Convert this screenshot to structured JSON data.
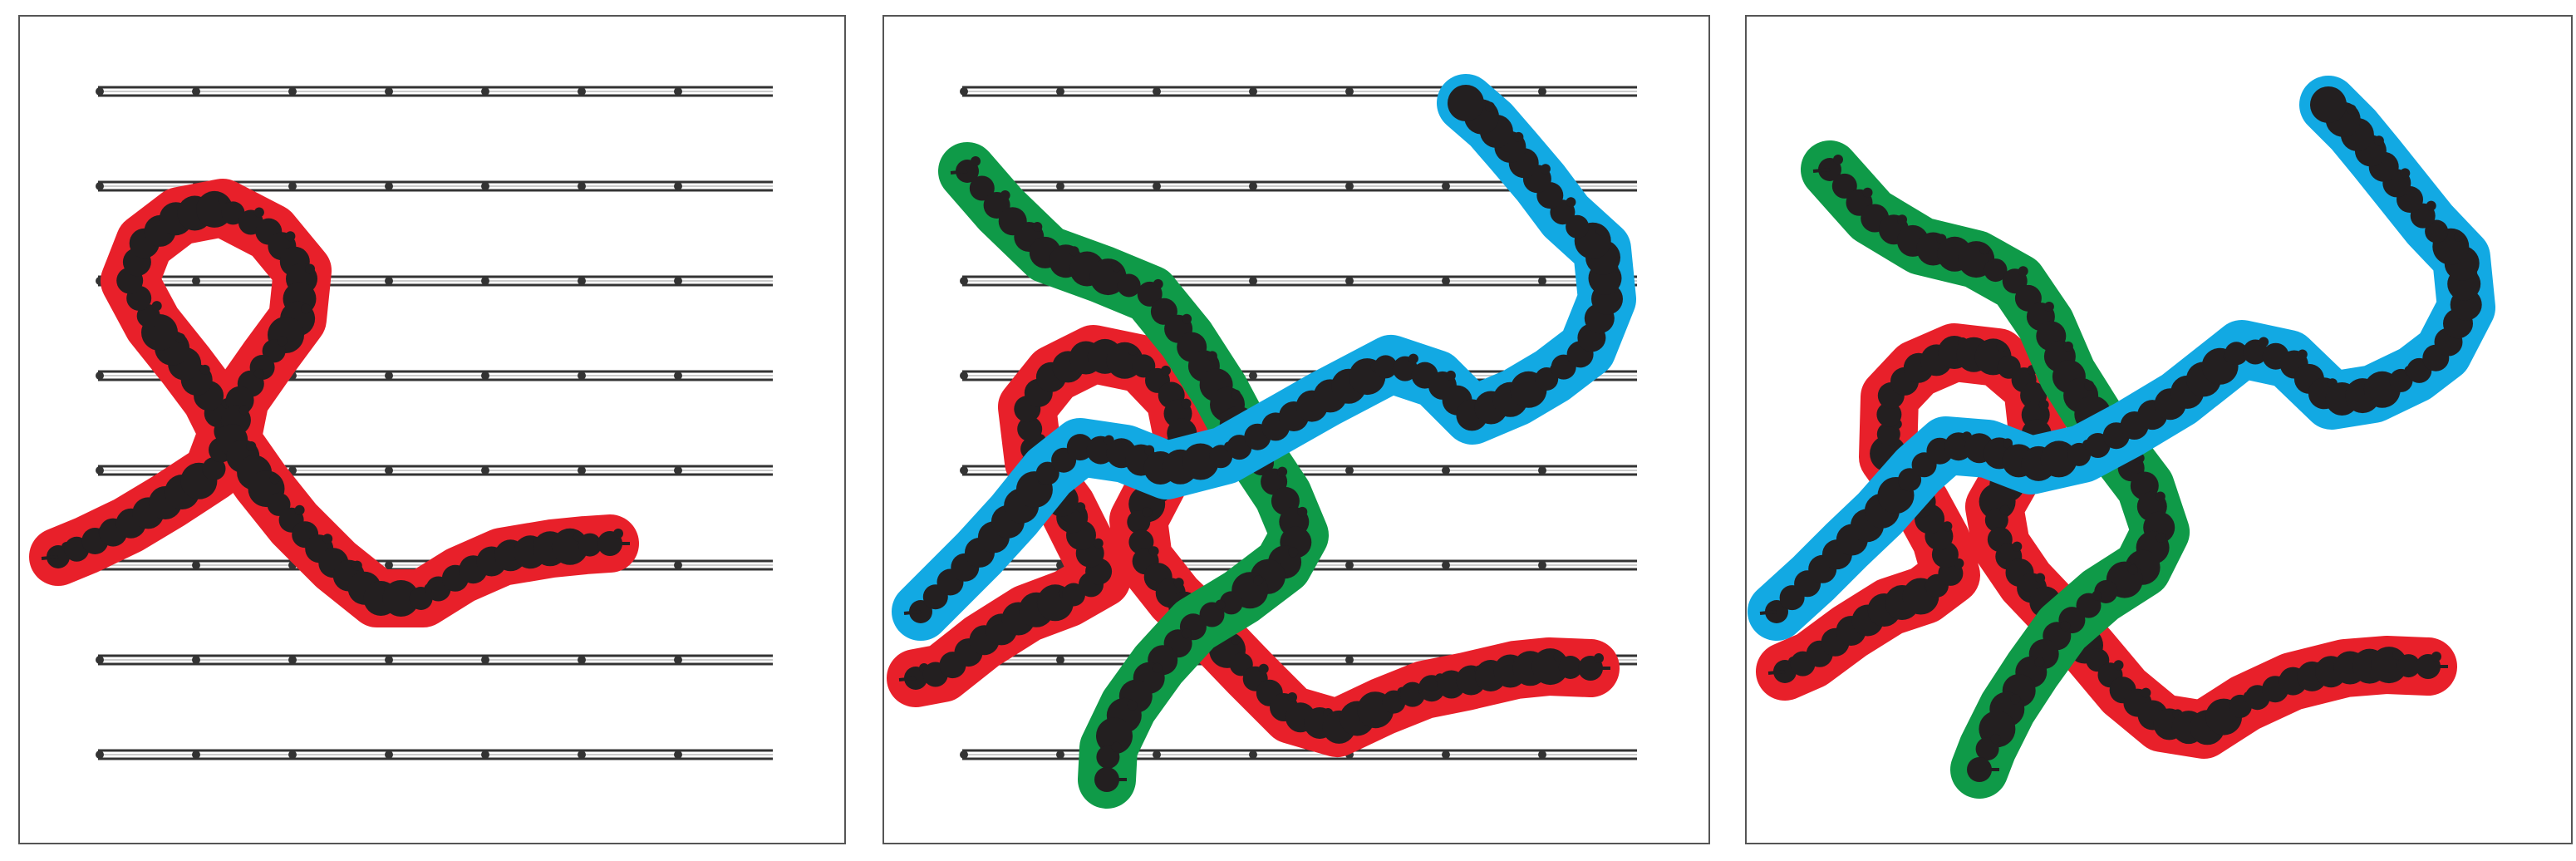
{
  "figure": {
    "panels": [
      {
        "id": "panel-1",
        "track_lines": true,
        "paths": [
          "red"
        ]
      },
      {
        "id": "panel-2",
        "track_lines": true,
        "paths": [
          "red",
          "green",
          "blue"
        ]
      },
      {
        "id": "panel-3",
        "track_lines": false,
        "paths": [
          "red",
          "green",
          "blue"
        ]
      }
    ],
    "colors": {
      "red": "#e8202a",
      "green": "#0f9a48",
      "blue": "#12a9e3",
      "ink": "#231f20",
      "track": "#333333"
    }
  }
}
